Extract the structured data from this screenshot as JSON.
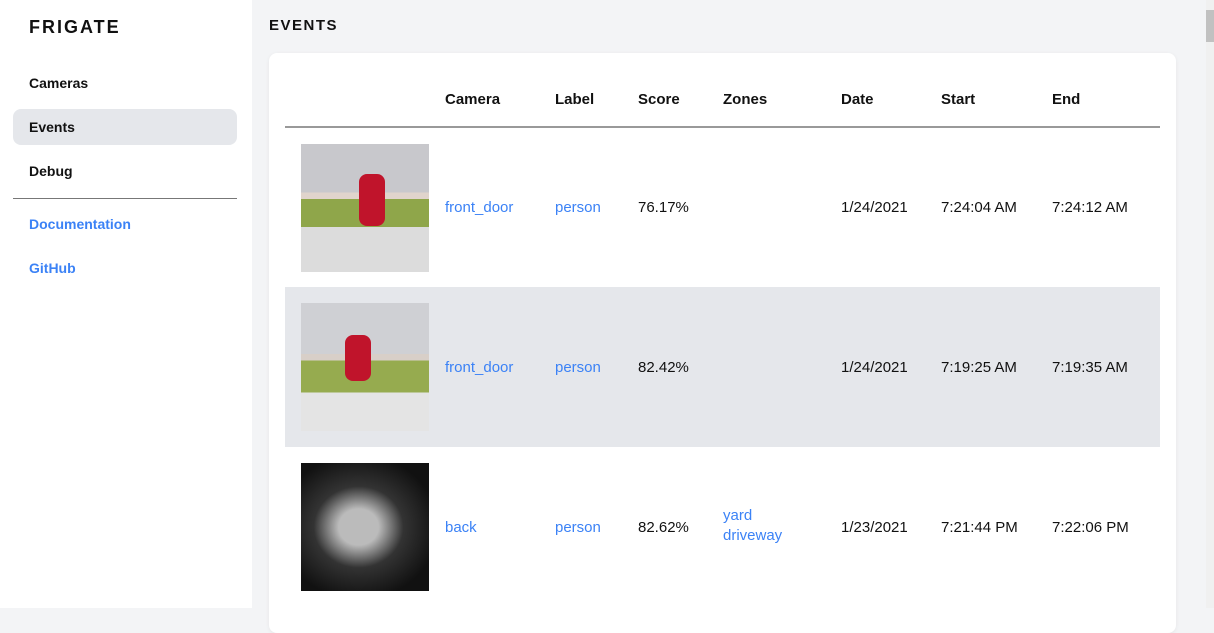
{
  "sidebar": {
    "brand": "FRIGATE",
    "items": [
      {
        "label": "Cameras"
      },
      {
        "label": "Events",
        "active": true
      },
      {
        "label": "Debug"
      }
    ],
    "links": [
      {
        "label": "Documentation"
      },
      {
        "label": "GitHub"
      }
    ]
  },
  "page": {
    "title": "EVENTS"
  },
  "table": {
    "headers": [
      "",
      "Camera",
      "Label",
      "Score",
      "Zones",
      "Date",
      "Start",
      "End"
    ],
    "rows": [
      {
        "camera": "front_door",
        "label": "person",
        "score": "76.17%",
        "zones": [
          "",
          ""
        ],
        "date": "1/24/2021",
        "start": "7:24:04 AM",
        "end": "7:24:12 AM"
      },
      {
        "camera": "front_door",
        "label": "person",
        "score": "82.42%",
        "zones": [
          "",
          ""
        ],
        "date": "1/24/2021",
        "start": "7:19:25 AM",
        "end": "7:19:35 AM"
      },
      {
        "camera": "back",
        "label": "person",
        "score": "82.62%",
        "zones": [
          "yard",
          "driveway"
        ],
        "date": "1/23/2021",
        "start": "7:21:44 PM",
        "end": "7:22:06 PM"
      }
    ]
  },
  "colors": {
    "accent": "#3b82f6",
    "active_bg": "#e5e7eb"
  }
}
